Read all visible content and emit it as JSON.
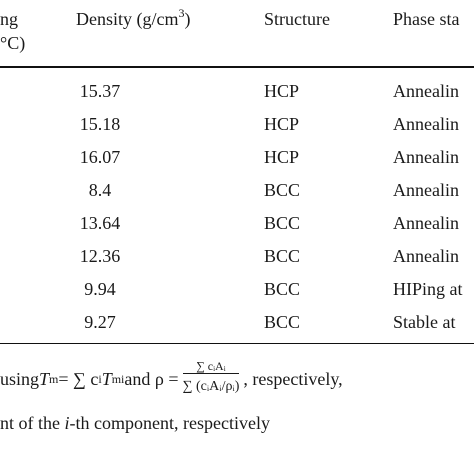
{
  "table": {
    "headers": {
      "melting_line1": "ng",
      "melting_line2": "°C)",
      "density_text": "Density (g/cm",
      "density_sup": "3",
      "density_close": ")",
      "structure": "Structure",
      "phase": "Phase sta"
    },
    "rows": [
      {
        "density": "15.37",
        "structure": "HCP",
        "phase": "Annealin"
      },
      {
        "density": "15.18",
        "structure": "HCP",
        "phase": "Annealin"
      },
      {
        "density": "16.07",
        "structure": "HCP",
        "phase": "Annealin"
      },
      {
        "density": "8.4",
        "structure": "BCC",
        "phase": "Annealin"
      },
      {
        "density": "13.64",
        "structure": "BCC",
        "phase": "Annealin"
      },
      {
        "density": "12.36",
        "structure": "BCC",
        "phase": "Annealin"
      },
      {
        "density": "9.94",
        "structure": "BCC",
        "phase": "HIPing at"
      },
      {
        "density": "9.27",
        "structure": "BCC",
        "phase": "Stable at"
      }
    ]
  },
  "footnote": {
    "line1_start": "using ",
    "Tm": "T",
    "Tm_sub": "m",
    "eq_sum": " = ∑ c",
    "ci_sub": "i",
    "Tmi": "T",
    "Tmi_sub": "mi",
    "and_rho": " and ρ = ",
    "frac_num": "∑ cᵢAᵢ",
    "frac_den": "∑ (cᵢAᵢ/ρᵢ)",
    "line1_end": ", respectively,",
    "line2_start": "nt of the ",
    "line2_i": "i",
    "line2_end": "-th component, respectively"
  }
}
